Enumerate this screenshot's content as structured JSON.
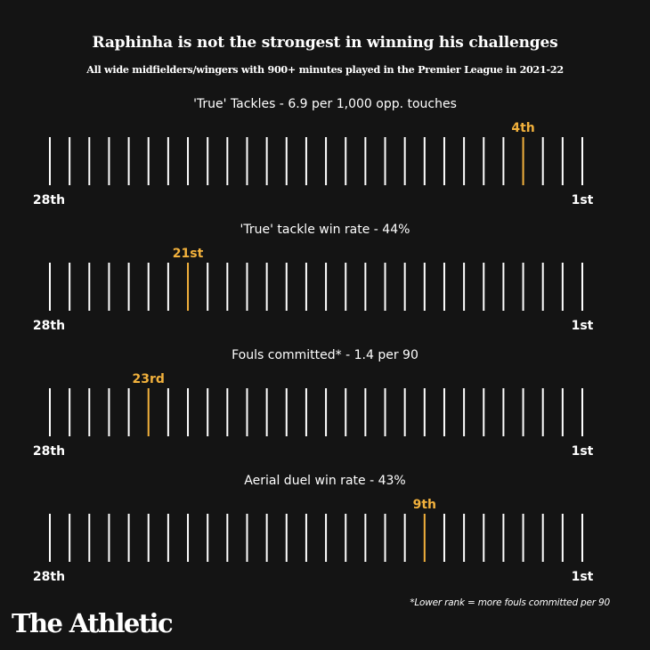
{
  "header": {
    "title": "Raphinha is not the strongest in winning his challenges",
    "subtitle": "All wide midfielders/wingers with 900+ minutes played in the Premier League in 2021-22"
  },
  "chart_data": {
    "type": "strip-rank",
    "title": "Raphinha is not the strongest in winning his challenges",
    "subtitle": "All wide midfielders/wingers with 900+ minutes played in the Premier League in 2021-22",
    "total_players": 28,
    "rank_axis": {
      "left_label": "28th",
      "right_label": "1st",
      "min_rank": 28,
      "max_rank": 1
    },
    "highlight_color": "#F2B13C",
    "line_color": "#FFFFFF",
    "metrics": [
      {
        "title": "'True' Tackles - 6.9 per 1,000 opp. touches",
        "metric": "'True' Tackles",
        "value": 6.9,
        "unit": "per 1,000 opp. touches",
        "rank": 4,
        "rank_label": "4th"
      },
      {
        "title": "'True' tackle win rate - 44%",
        "metric": "'True' tackle win rate",
        "value": 44,
        "unit": "%",
        "rank": 21,
        "rank_label": "21st"
      },
      {
        "title": "Fouls committed* - 1.4 per 90",
        "metric": "Fouls committed*",
        "value": 1.4,
        "unit": "per 90",
        "rank": 23,
        "rank_label": "23rd"
      },
      {
        "title": "Aerial duel win rate - 43%",
        "metric": "Aerial duel win rate",
        "value": 43,
        "unit": "%",
        "rank": 9,
        "rank_label": "9th"
      }
    ],
    "footnote": "*Lower rank = more fouls committed per 90"
  },
  "footer": {
    "footnote": "*Lower rank = more fouls committed per 90",
    "logo": "The Athletic"
  }
}
